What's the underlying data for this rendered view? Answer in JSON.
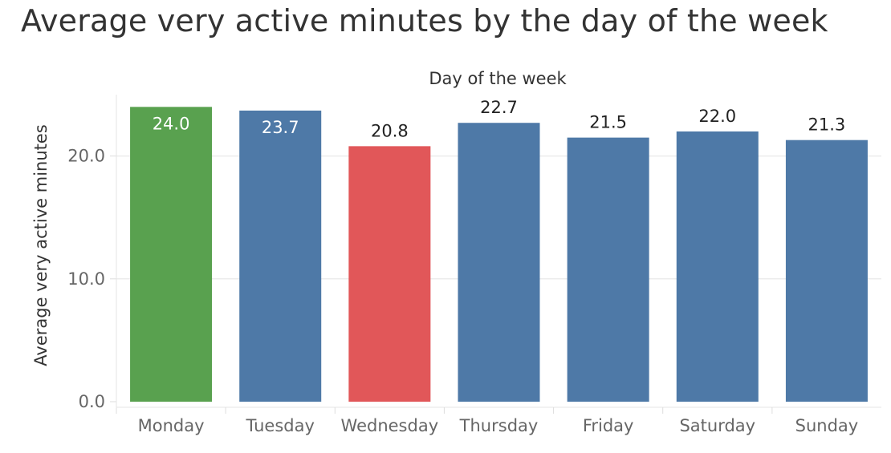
{
  "chart_data": {
    "type": "bar",
    "title": "Average very active minutes by the day of the week",
    "xlabel": "Day of the week",
    "ylabel": "Average very active minutes",
    "categories": [
      "Monday",
      "Tuesday",
      "Wednesday",
      "Thursday",
      "Friday",
      "Saturday",
      "Sunday"
    ],
    "values": [
      24.0,
      23.7,
      20.8,
      22.7,
      21.5,
      22.0,
      21.3
    ],
    "value_labels": [
      "24.0",
      "23.7",
      "20.8",
      "22.7",
      "21.5",
      "22.0",
      "21.3"
    ],
    "bar_colors": [
      "#59a14f",
      "#4e79a7",
      "#e15759",
      "#4e79a7",
      "#4e79a7",
      "#4e79a7",
      "#4e79a7"
    ],
    "label_inside": [
      true,
      true,
      false,
      false,
      false,
      false,
      false
    ],
    "yticks": [
      "0.0",
      "10.0",
      "20.0"
    ],
    "ylim": [
      0,
      25
    ],
    "grid": true,
    "xlabel_position": "top",
    "legend": false
  }
}
